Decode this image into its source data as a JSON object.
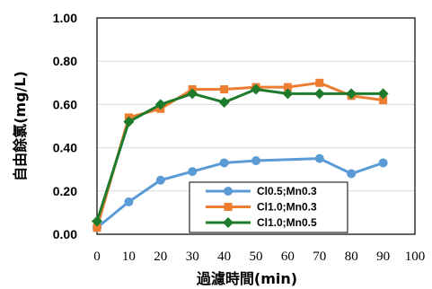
{
  "chart_data": {
    "type": "line",
    "xlabel": "過濾時間(min)",
    "ylabel": "自由餘氯(mg/L)",
    "xlim": [
      0,
      100
    ],
    "ylim": [
      0,
      1.0
    ],
    "xticks": [
      0,
      10,
      20,
      30,
      40,
      50,
      60,
      70,
      80,
      90,
      100
    ],
    "yticks": [
      0.0,
      0.2,
      0.4,
      0.6,
      0.8,
      1.0
    ],
    "ytick_labels": [
      "0.00",
      "0.20",
      "0.40",
      "0.60",
      "0.80",
      "1.00"
    ],
    "grid": "horizontal",
    "legend_position": "bottom-right",
    "series": [
      {
        "name": "Cl0.5;Mn0.3",
        "color": "#5B9BD5",
        "marker": "circle",
        "x": [
          0,
          10,
          20,
          30,
          40,
          50,
          70,
          80,
          90
        ],
        "y": [
          0.03,
          0.15,
          0.25,
          0.29,
          0.33,
          0.34,
          0.35,
          0.28,
          0.33
        ]
      },
      {
        "name": "Cl1.0;Mn0.3",
        "color": "#ED7D31",
        "marker": "square",
        "x": [
          0,
          10,
          20,
          30,
          40,
          50,
          60,
          70,
          80,
          90
        ],
        "y": [
          0.03,
          0.54,
          0.58,
          0.67,
          0.67,
          0.68,
          0.68,
          0.7,
          0.64,
          0.62
        ]
      },
      {
        "name": "Cl1.0;Mn0.5",
        "color": "#1E7B2B",
        "marker": "diamond",
        "x": [
          0,
          10,
          20,
          30,
          40,
          50,
          60,
          70,
          80,
          90
        ],
        "y": [
          0.06,
          0.52,
          0.6,
          0.65,
          0.61,
          0.67,
          0.65,
          0.65,
          0.65,
          0.65
        ]
      }
    ]
  }
}
